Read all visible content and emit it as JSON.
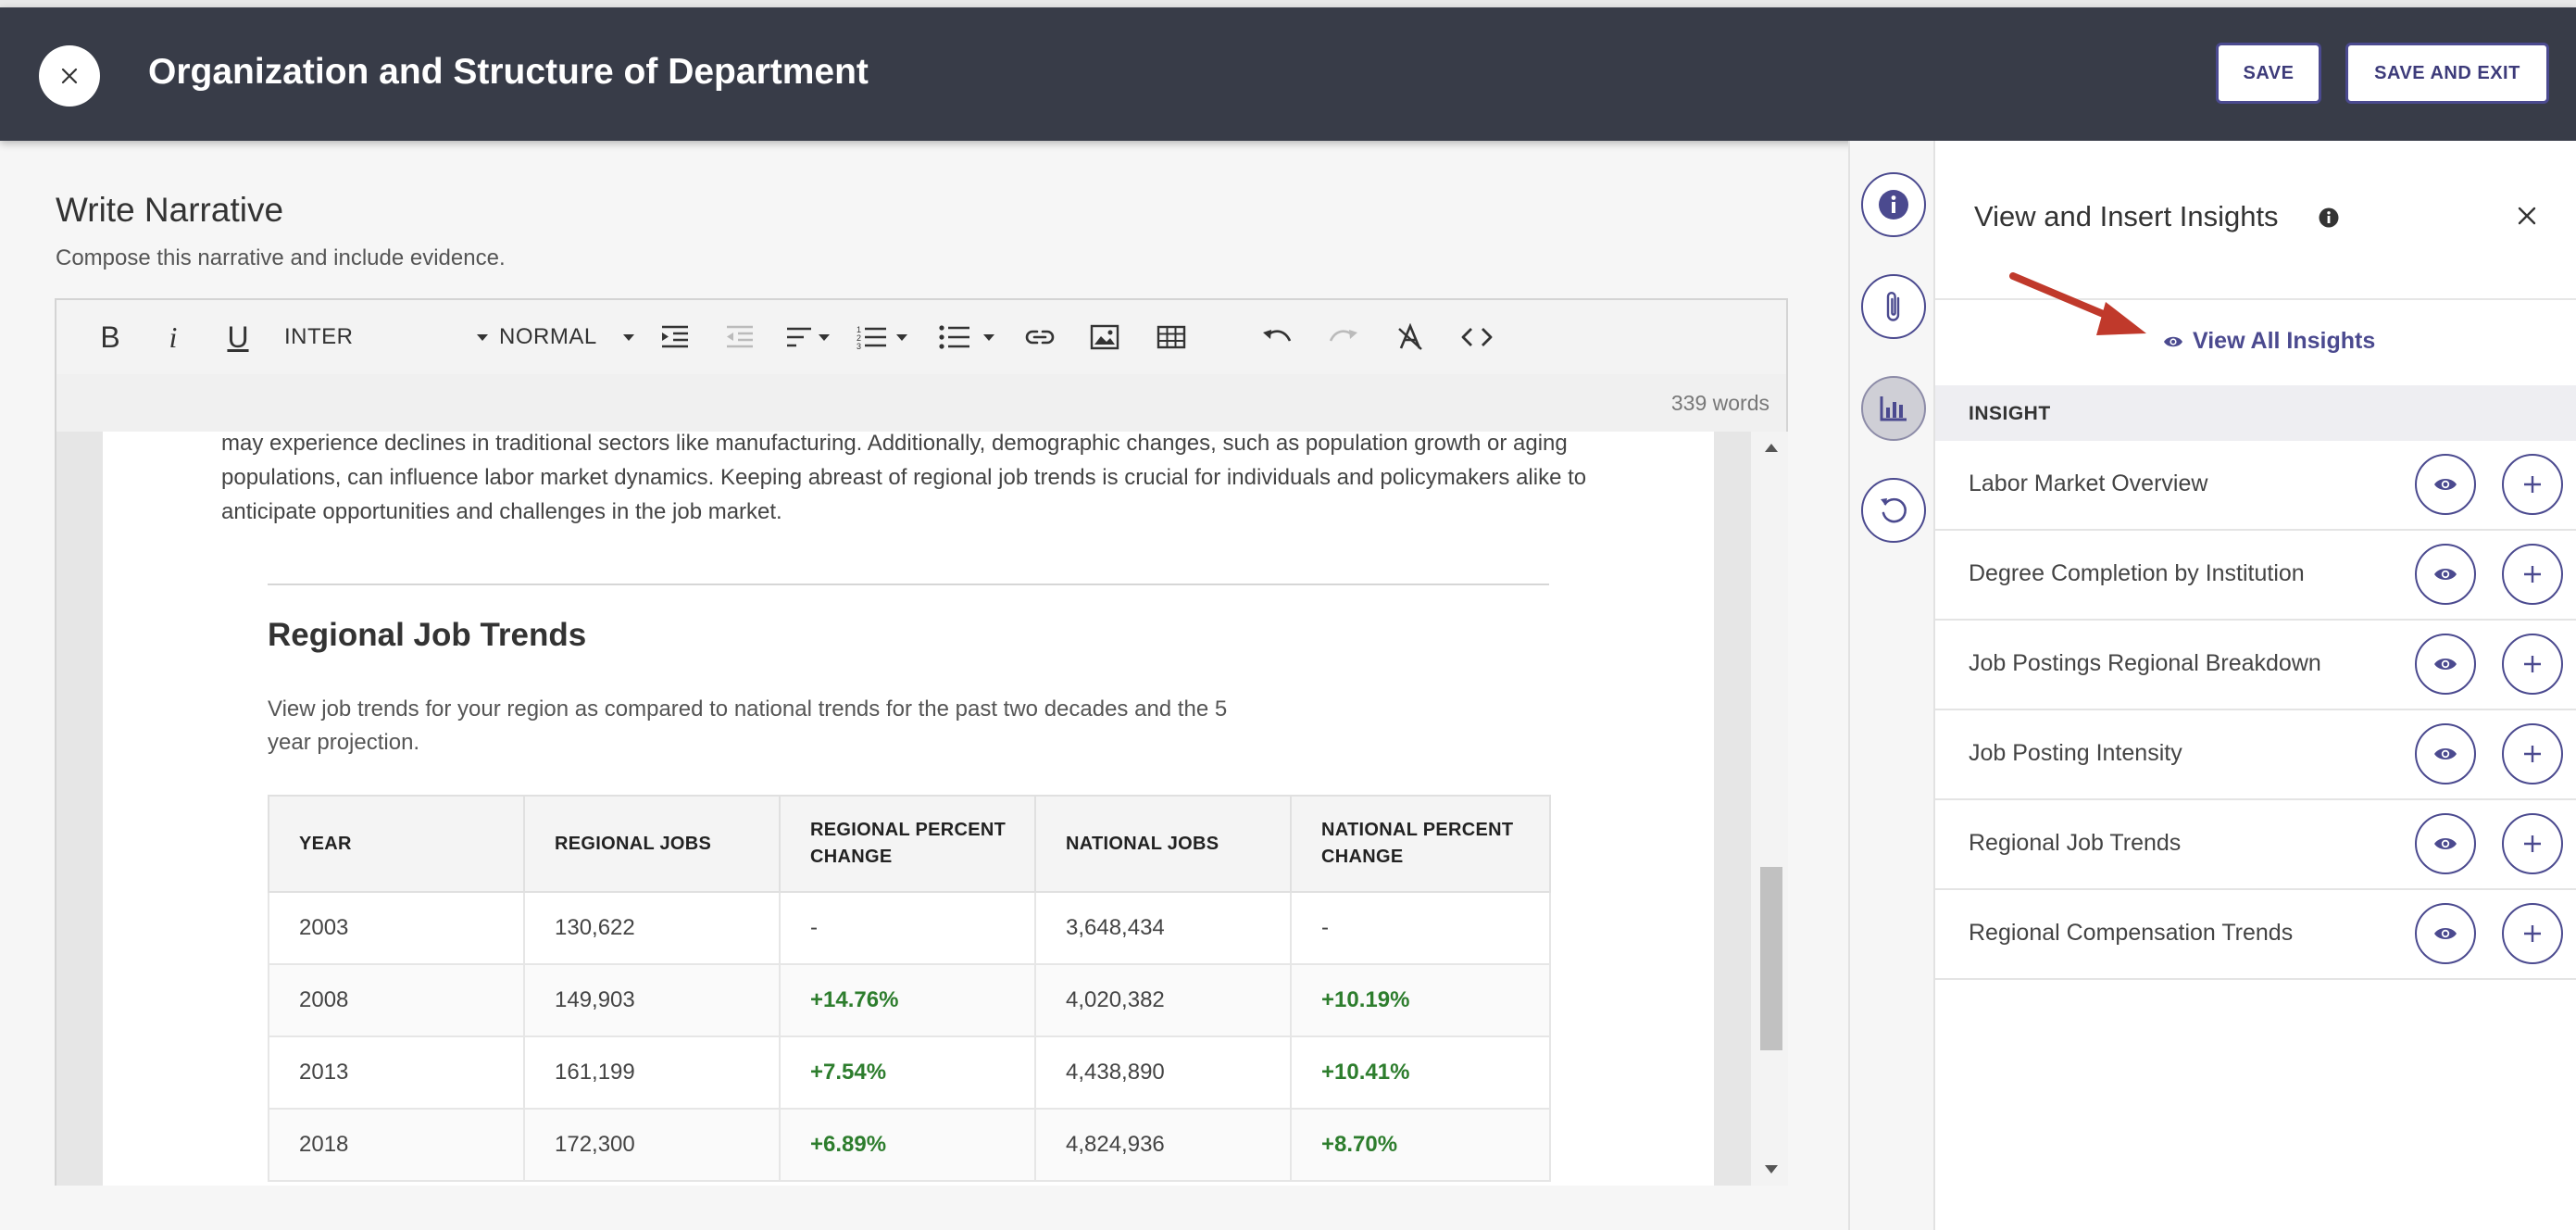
{
  "header": {
    "title": "Organization and Structure of Department",
    "save_label": "SAVE",
    "save_exit_label": "SAVE AND EXIT"
  },
  "editor": {
    "title": "Write Narrative",
    "subtitle": "Compose this narrative and include evidence.",
    "toolbar": {
      "font_family": "INTER",
      "font_size": "NORMAL"
    },
    "word_count": "339 words",
    "intro_text": "may experience declines in traditional sectors like manufacturing. Additionally, demographic changes, such as population growth or aging populations, can influence labor market dynamics. Keeping abreast of regional job trends is crucial for individuals and policymakers alike to anticipate opportunities and challenges in the job market.",
    "section_title": "Regional Job Trends",
    "section_desc": "View job trends for your region as compared to national trends for the past two decades and the 5 year projection.",
    "table": {
      "headers": [
        "YEAR",
        "REGIONAL JOBS",
        "REGIONAL PERCENT CHANGE",
        "NATIONAL JOBS",
        "NATIONAL PERCENT CHANGE"
      ],
      "rows": [
        [
          "2003",
          "130,622",
          "-",
          "3,648,434",
          "-"
        ],
        [
          "2008",
          "149,903",
          "+14.76%",
          "4,020,382",
          "+10.19%"
        ],
        [
          "2013",
          "161,199",
          "+7.54%",
          "4,438,890",
          "+10.41%"
        ],
        [
          "2018",
          "172,300",
          "+6.89%",
          "4,824,936",
          "+8.70%"
        ]
      ]
    }
  },
  "insights_panel": {
    "title": "View and Insert Insights",
    "view_all_label": "View All Insights",
    "column_header": "INSIGHT",
    "items": [
      "Labor Market Overview",
      "Degree Completion by Institution",
      "Job Postings Regional Breakdown",
      "Job Posting Intensity",
      "Regional Job Trends",
      "Regional Compensation Trends"
    ]
  },
  "colors": {
    "header_bg": "#383c48",
    "accent": "#4b4a8f",
    "positive": "#2d7d2d",
    "arrow": "#c0392b"
  }
}
